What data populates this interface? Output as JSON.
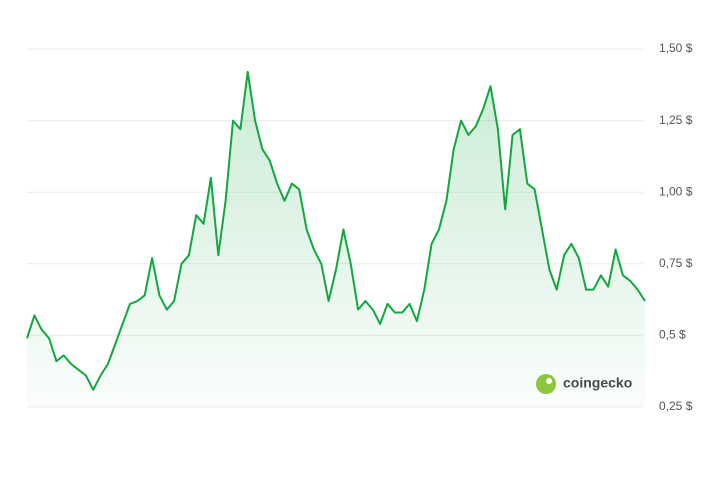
{
  "chart_data": {
    "type": "line",
    "values": [
      0.49,
      0.57,
      0.52,
      0.49,
      0.41,
      0.43,
      0.4,
      0.38,
      0.36,
      0.31,
      0.36,
      0.4,
      0.47,
      0.54,
      0.61,
      0.62,
      0.64,
      0.77,
      0.64,
      0.59,
      0.62,
      0.75,
      0.78,
      0.92,
      0.89,
      1.05,
      0.78,
      0.97,
      1.25,
      1.22,
      1.42,
      1.25,
      1.15,
      1.11,
      1.03,
      0.97,
      1.03,
      1.01,
      0.87,
      0.8,
      0.75,
      0.62,
      0.73,
      0.87,
      0.75,
      0.59,
      0.62,
      0.59,
      0.54,
      0.61,
      0.58,
      0.58,
      0.61,
      0.55,
      0.66,
      0.82,
      0.87,
      0.97,
      1.15,
      1.25,
      1.2,
      1.23,
      1.29,
      1.37,
      1.22,
      0.94,
      1.2,
      1.22,
      1.03,
      1.01,
      0.87,
      0.73,
      0.66,
      0.78,
      0.82,
      0.77,
      0.66,
      0.66,
      0.71,
      0.67,
      0.8,
      0.71,
      0.69,
      0.66,
      0.62
    ],
    "color": "#12a73f",
    "ylim": [
      0.25,
      1.5
    ],
    "yticks": [
      {
        "value": 0.25,
        "label": "0,25 $"
      },
      {
        "value": 0.5,
        "label": "0,5 $"
      },
      {
        "value": 0.75,
        "label": "0,75 $"
      },
      {
        "value": 1.0,
        "label": "1,00 $"
      },
      {
        "value": 1.25,
        "label": "1,25 $"
      },
      {
        "value": 1.5,
        "label": "1,50 $"
      }
    ],
    "grid": true,
    "watermark": "coingecko"
  }
}
